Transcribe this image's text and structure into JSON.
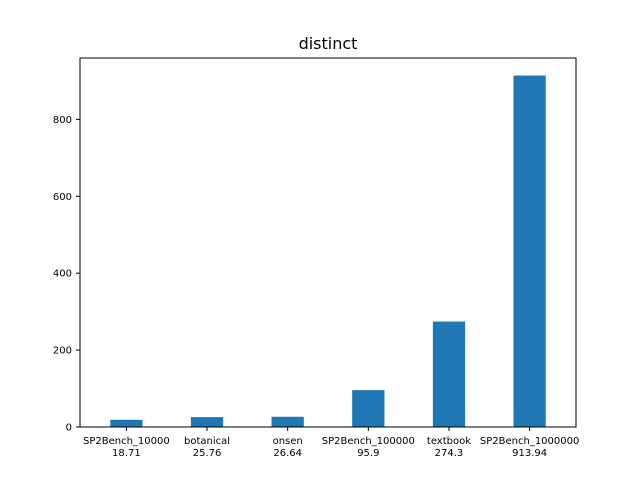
{
  "chart_data": {
    "type": "bar",
    "title": "distinct",
    "xlabel": "",
    "ylabel": "",
    "categories": [
      "SP2Bench_10000",
      "botanical",
      "onsen",
      "SP2Bench_100000",
      "textbook",
      "SP2Bench_1000000"
    ],
    "value_labels": [
      "18.71",
      "25.76",
      "26.64",
      "95.9",
      "274.3",
      "913.94"
    ],
    "values": [
      18.71,
      25.76,
      26.64,
      95.9,
      274.3,
      913.94
    ],
    "ylim": [
      0,
      959.6
    ],
    "yticks": [
      0,
      200,
      400,
      600,
      800
    ],
    "grid": false,
    "legend": "none",
    "bar_color": "#1f77b4"
  }
}
